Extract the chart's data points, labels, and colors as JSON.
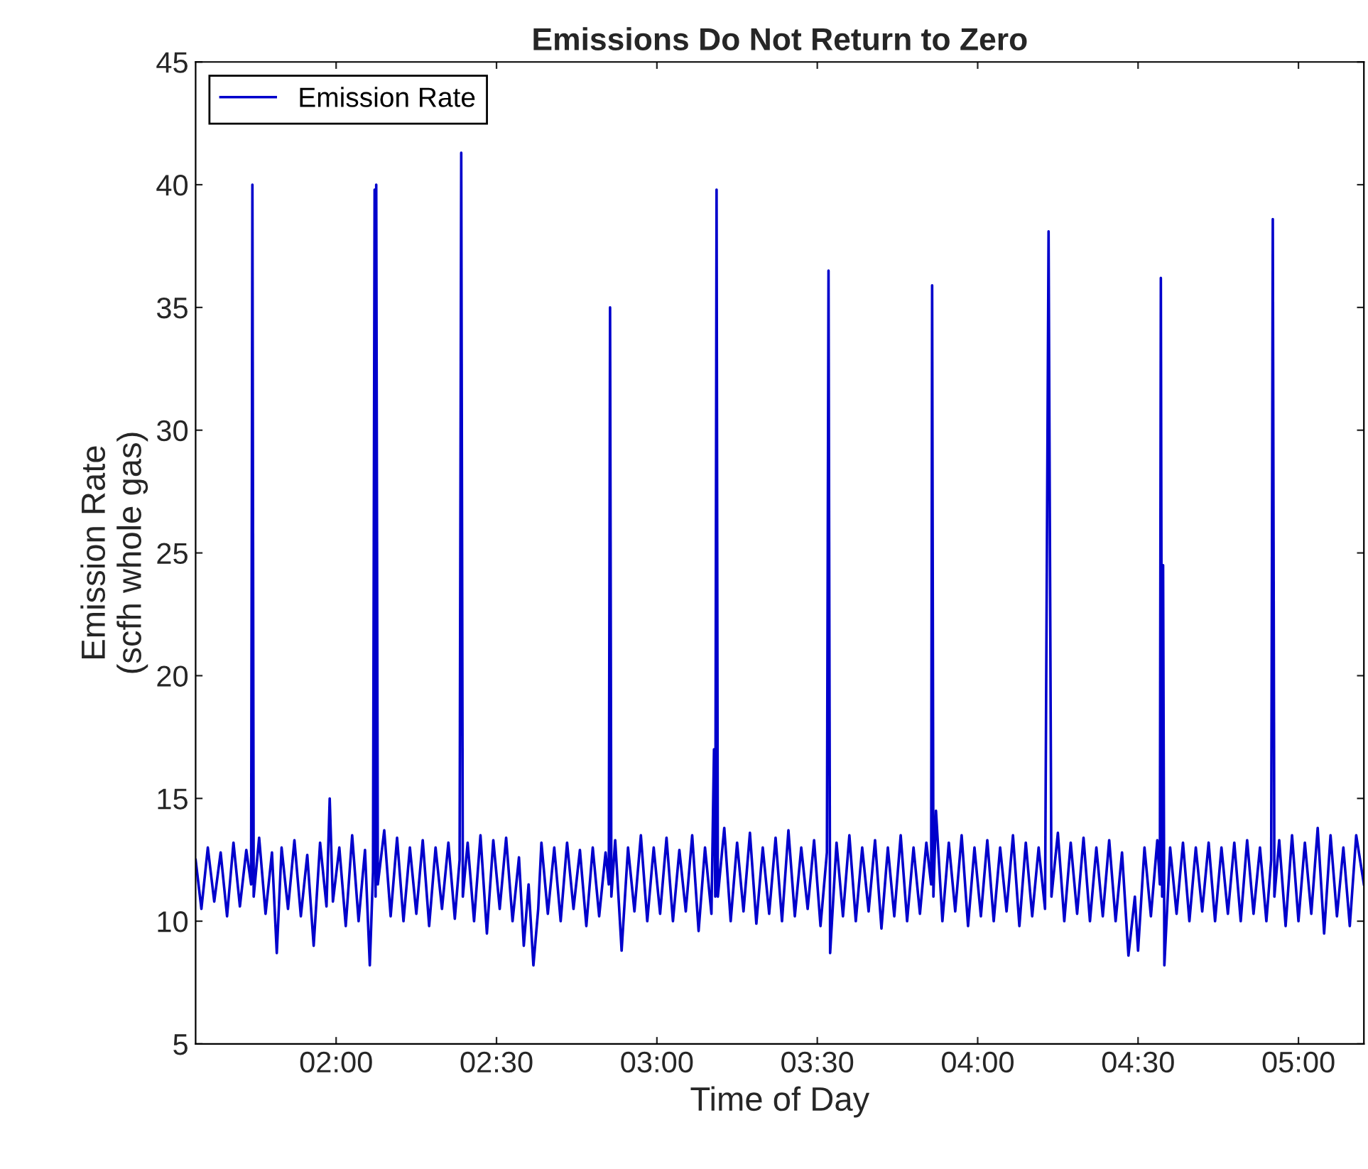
{
  "chart_data": {
    "type": "line",
    "title": "Emissions Do Not Return to Zero",
    "xlabel": "Time of Day",
    "ylabel": "Emission Rate\n(scfh whole gas)",
    "xlim": [
      1.562,
      5.204
    ],
    "xticks": [
      {
        "value": 2,
        "label": "02:00"
      },
      {
        "value": 2.5,
        "label": "02:30"
      },
      {
        "value": 3,
        "label": "03:00"
      },
      {
        "value": 3.5,
        "label": "03:30"
      },
      {
        "value": 4,
        "label": "04:00"
      },
      {
        "value": 4.5,
        "label": "04:30"
      },
      {
        "value": 5,
        "label": "05:00"
      }
    ],
    "ylim": [
      5,
      45
    ],
    "yticks": [
      5,
      10,
      15,
      20,
      25,
      30,
      35,
      40,
      45
    ],
    "grid": false,
    "legend": "top left",
    "marker": "none",
    "line_style": "solid",
    "series": [
      {
        "name": "Emission Rate",
        "color": "#0000cc",
        "x": [
          1.562,
          1.58,
          1.6,
          1.62,
          1.64,
          1.66,
          1.68,
          1.7,
          1.72,
          1.735,
          1.739,
          1.743,
          1.76,
          1.78,
          1.8,
          1.815,
          1.83,
          1.85,
          1.87,
          1.89,
          1.91,
          1.93,
          1.95,
          1.97,
          1.98,
          1.99,
          2.01,
          2.03,
          2.05,
          2.07,
          2.09,
          2.105,
          2.115,
          2.12,
          2.123,
          2.125,
          2.13,
          2.15,
          2.17,
          2.19,
          2.21,
          2.23,
          2.25,
          2.27,
          2.29,
          2.31,
          2.33,
          2.35,
          2.37,
          2.385,
          2.39,
          2.395,
          2.41,
          2.43,
          2.45,
          2.47,
          2.49,
          2.51,
          2.53,
          2.55,
          2.57,
          2.585,
          2.6,
          2.615,
          2.63,
          2.64,
          2.66,
          2.68,
          2.7,
          2.72,
          2.74,
          2.76,
          2.78,
          2.8,
          2.82,
          2.84,
          2.85,
          2.854,
          2.858,
          2.87,
          2.89,
          2.91,
          2.93,
          2.95,
          2.97,
          2.99,
          3.01,
          3.03,
          3.05,
          3.07,
          3.09,
          3.11,
          3.13,
          3.15,
          3.17,
          3.178,
          3.182,
          3.186,
          3.19,
          3.21,
          3.23,
          3.25,
          3.27,
          3.29,
          3.31,
          3.33,
          3.35,
          3.37,
          3.39,
          3.41,
          3.43,
          3.45,
          3.47,
          3.49,
          3.51,
          3.53,
          3.535,
          3.54,
          3.56,
          3.58,
          3.6,
          3.62,
          3.64,
          3.66,
          3.68,
          3.7,
          3.72,
          3.74,
          3.76,
          3.78,
          3.8,
          3.82,
          3.84,
          3.855,
          3.858,
          3.862,
          3.87,
          3.89,
          3.91,
          3.93,
          3.95,
          3.97,
          3.99,
          4.01,
          4.03,
          4.05,
          4.07,
          4.09,
          4.11,
          4.13,
          4.15,
          4.17,
          4.19,
          4.21,
          4.221,
          4.23,
          4.25,
          4.27,
          4.29,
          4.31,
          4.33,
          4.35,
          4.37,
          4.39,
          4.41,
          4.43,
          4.45,
          4.47,
          4.49,
          4.5,
          4.52,
          4.54,
          4.56,
          4.568,
          4.571,
          4.575,
          4.578,
          4.582,
          4.6,
          4.62,
          4.64,
          4.66,
          4.68,
          4.7,
          4.72,
          4.74,
          4.76,
          4.78,
          4.8,
          4.82,
          4.84,
          4.86,
          4.88,
          4.9,
          4.915,
          4.92,
          4.925,
          4.94,
          4.96,
          4.98,
          5.0,
          5.02,
          5.04,
          5.06,
          5.08,
          5.1,
          5.12,
          5.14,
          5.16,
          5.18,
          5.204
        ],
        "values": [
          12.5,
          10.5,
          13.0,
          10.8,
          12.8,
          10.2,
          13.2,
          10.6,
          12.9,
          11.5,
          40.0,
          11.0,
          13.4,
          10.3,
          12.8,
          8.7,
          13.0,
          10.5,
          13.3,
          10.2,
          12.7,
          9.0,
          13.2,
          10.6,
          15.0,
          10.8,
          13.0,
          9.8,
          13.5,
          10.0,
          12.9,
          8.2,
          12.0,
          39.8,
          11.0,
          40.0,
          11.5,
          13.7,
          10.2,
          13.4,
          10.0,
          13.0,
          10.3,
          13.3,
          9.8,
          13.0,
          10.5,
          13.2,
          10.1,
          12.5,
          41.3,
          11.0,
          13.2,
          10.0,
          13.5,
          9.5,
          13.3,
          10.5,
          13.4,
          10.0,
          12.6,
          9.0,
          11.5,
          8.2,
          10.5,
          13.2,
          10.3,
          13.0,
          10.0,
          13.2,
          10.5,
          12.9,
          9.8,
          13.0,
          10.2,
          12.8,
          11.5,
          35.0,
          11.0,
          13.3,
          8.8,
          13.0,
          10.4,
          13.5,
          10.0,
          13.0,
          10.3,
          13.4,
          10.0,
          12.9,
          10.4,
          13.5,
          9.6,
          13.0,
          10.3,
          17.0,
          11.0,
          39.8,
          11.0,
          13.8,
          10.0,
          13.2,
          10.4,
          13.6,
          9.9,
          13.0,
          10.3,
          13.4,
          10.0,
          13.7,
          10.2,
          13.0,
          10.5,
          13.3,
          9.8,
          12.8,
          36.5,
          8.7,
          13.2,
          10.2,
          13.5,
          10.0,
          13.0,
          10.4,
          13.3,
          9.7,
          13.0,
          10.2,
          13.5,
          10.0,
          13.0,
          10.3,
          13.2,
          11.5,
          35.9,
          11.0,
          14.5,
          10.0,
          13.2,
          10.4,
          13.5,
          9.8,
          13.0,
          10.2,
          13.3,
          10.0,
          13.0,
          10.4,
          13.5,
          9.8,
          13.2,
          10.2,
          13.0,
          10.5,
          38.1,
          11.0,
          13.6,
          10.0,
          13.2,
          10.3,
          13.4,
          10.0,
          13.0,
          10.2,
          13.3,
          10.0,
          12.8,
          8.6,
          11.0,
          8.8,
          13.0,
          10.2,
          13.3,
          11.5,
          36.2,
          11.0,
          24.5,
          8.2,
          13.0,
          10.3,
          13.2,
          10.0,
          13.0,
          10.4,
          13.2,
          10.0,
          13.0,
          10.3,
          13.2,
          10.0,
          13.3,
          10.3,
          13.0,
          10.0,
          12.5,
          38.6,
          11.0,
          13.3,
          9.8,
          13.5,
          10.0,
          13.2,
          10.3,
          13.8,
          9.5,
          13.5,
          10.2,
          13.0,
          9.8,
          13.5,
          11.5
        ]
      }
    ]
  }
}
